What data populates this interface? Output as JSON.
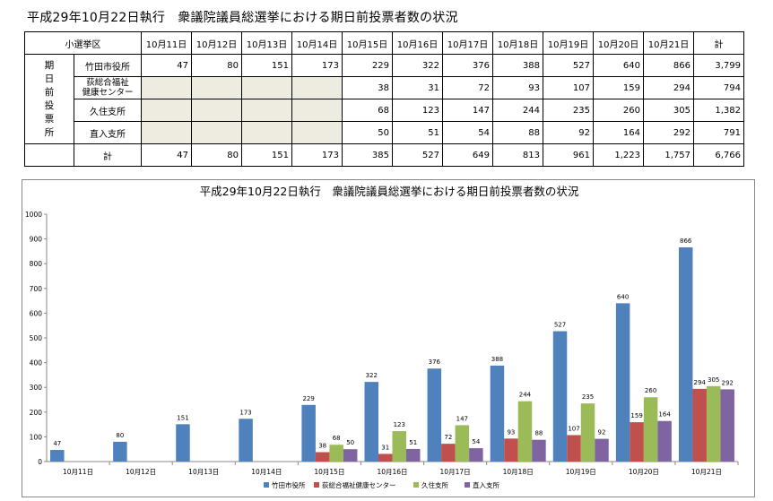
{
  "page_title": "平成29年10月22日執行　衆議院議員総選挙における期日前投票者数の状況",
  "table": {
    "corner_label": "小選挙区",
    "group_label": [
      "期",
      "日",
      "前",
      "投",
      "票",
      "所"
    ],
    "headers": [
      "10月11日",
      "10月12日",
      "10月13日",
      "10月14日",
      "10月15日",
      "10月16日",
      "10月17日",
      "10月18日",
      "10月19日",
      "10月20日",
      "10月21日",
      "計"
    ],
    "rows": [
      {
        "label": "竹田市役所",
        "cells": [
          "47",
          "80",
          "151",
          "173",
          "229",
          "322",
          "376",
          "388",
          "527",
          "640",
          "866",
          "3,799"
        ]
      },
      {
        "label_lines": [
          "荻総合福祉",
          "健康センター"
        ],
        "cells": [
          "",
          "",
          "",
          "",
          "38",
          "31",
          "72",
          "93",
          "107",
          "159",
          "294",
          "794"
        ]
      },
      {
        "label": "久住支所",
        "cells": [
          "",
          "",
          "",
          "",
          "68",
          "123",
          "147",
          "244",
          "235",
          "260",
          "305",
          "1,382"
        ]
      },
      {
        "label": "直入支所",
        "cells": [
          "",
          "",
          "",
          "",
          "50",
          "51",
          "54",
          "88",
          "92",
          "164",
          "292",
          "791"
        ]
      }
    ],
    "total_row": {
      "label": "計",
      "cells": [
        "47",
        "80",
        "151",
        "173",
        "385",
        "527",
        "649",
        "813",
        "961",
        "1,223",
        "1,757",
        "6,766"
      ]
    }
  },
  "chart_data": {
    "type": "bar",
    "title": "平成29年10月22日執行　衆議院議員総選挙における期日前投票者数の状況",
    "categories": [
      "10月11日",
      "10月12日",
      "10月13日",
      "10月14日",
      "10月15日",
      "10月16日",
      "10月17日",
      "10月18日",
      "10月19日",
      "10月20日",
      "10月21日"
    ],
    "ylim": [
      0,
      1000
    ],
    "yticks": [
      0,
      100,
      200,
      300,
      400,
      500,
      600,
      700,
      800,
      900,
      1000
    ],
    "grid": false,
    "legend_position": "bottom",
    "series": [
      {
        "name": "竹田市役所",
        "color": "#4f81bd",
        "values": [
          47,
          80,
          151,
          173,
          229,
          322,
          376,
          388,
          527,
          640,
          866
        ]
      },
      {
        "name": "荻総合福祉健康センター",
        "color": "#c0504d",
        "values": [
          null,
          null,
          null,
          null,
          38,
          31,
          72,
          93,
          107,
          159,
          294
        ]
      },
      {
        "name": "久住支所",
        "color": "#9bbb59",
        "values": [
          null,
          null,
          null,
          null,
          68,
          123,
          147,
          244,
          235,
          260,
          305
        ]
      },
      {
        "name": "直入支所",
        "color": "#8064a2",
        "values": [
          null,
          null,
          null,
          null,
          50,
          51,
          54,
          88,
          92,
          164,
          292
        ]
      }
    ]
  }
}
